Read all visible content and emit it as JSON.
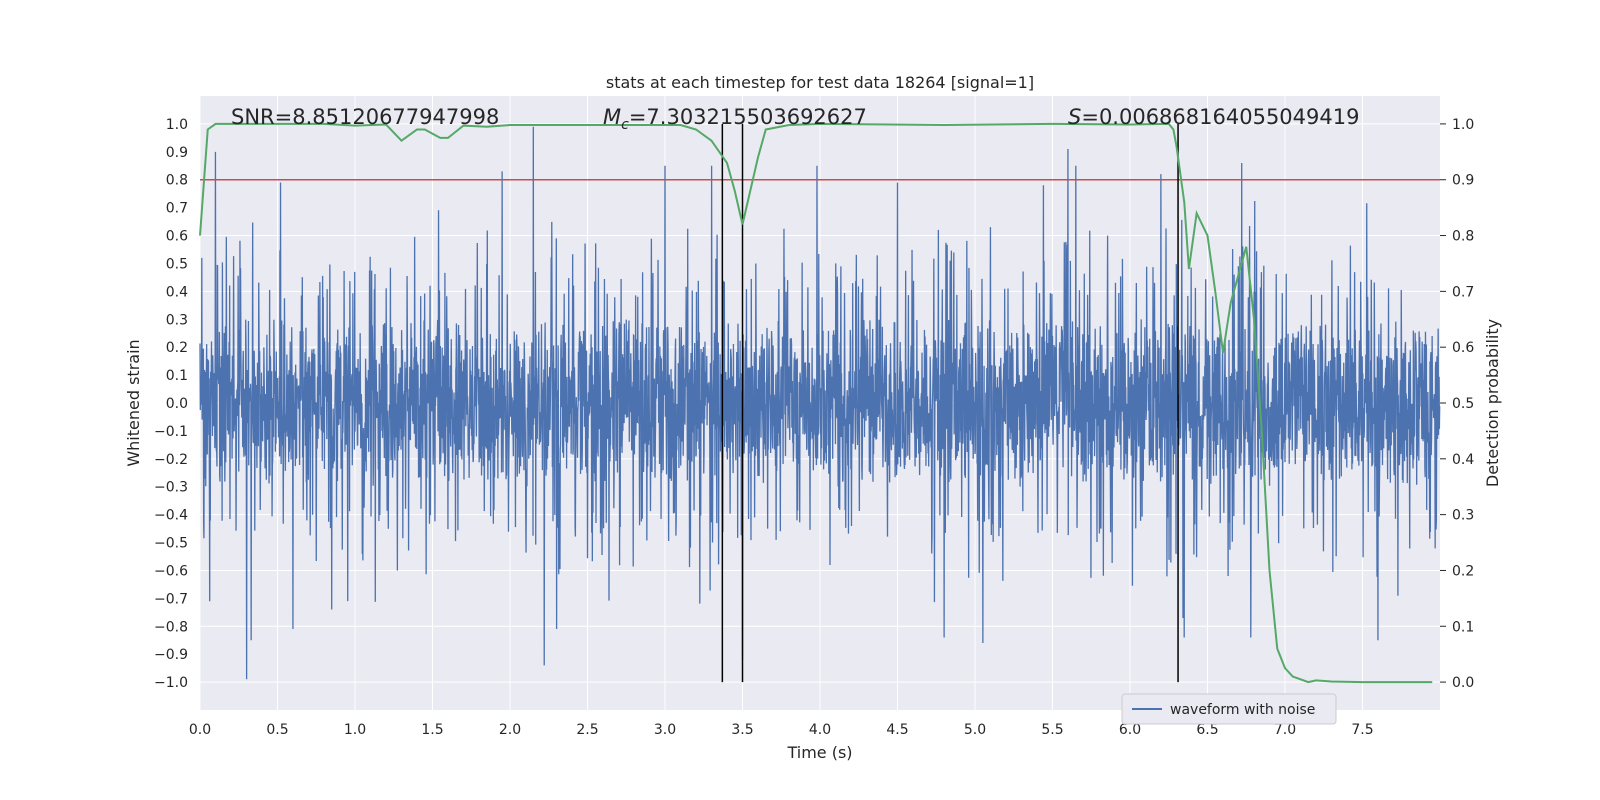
{
  "chart_data": {
    "type": "line",
    "title": "stats at each timestep for test data 18264 [signal=1]",
    "xlabel": "Time (s)",
    "ylabel": "Whitened strain",
    "y2label": "Detection probability",
    "xlim": [
      0,
      8
    ],
    "ylim": [
      -1.1,
      1.1
    ],
    "y2lim": [
      -0.05,
      1.05
    ],
    "x_ticks": [
      0.0,
      0.5,
      1.0,
      1.5,
      2.0,
      2.5,
      3.0,
      3.5,
      4.0,
      4.5,
      5.0,
      5.5,
      6.0,
      6.5,
      7.0,
      7.5
    ],
    "x_tick_labels": [
      "0.0",
      "0.5",
      "1.0",
      "1.5",
      "2.0",
      "2.5",
      "3.0",
      "3.5",
      "4.0",
      "4.5",
      "5.0",
      "5.5",
      "6.0",
      "6.5",
      "7.0",
      "7.5"
    ],
    "y_ticks": [
      1.0,
      0.9,
      0.8,
      0.7,
      0.6,
      0.5,
      0.4,
      0.3,
      0.2,
      0.1,
      0.0,
      -0.1,
      -0.2,
      -0.3,
      -0.4,
      -0.5,
      -0.6,
      -0.7,
      -0.8,
      -0.9,
      -1.0
    ],
    "y_tick_labels": [
      "1.0",
      "0.9",
      "0.8",
      "0.7",
      "0.6",
      "0.5",
      "0.4",
      "0.3",
      "0.2",
      "0.1",
      "0.0",
      "−0.1",
      "−0.2",
      "−0.3",
      "−0.4",
      "−0.5",
      "−0.6",
      "−0.7",
      "−0.8",
      "−0.9",
      "−1.0"
    ],
    "y2_ticks": [
      1.0,
      0.9,
      0.8,
      0.7,
      0.6,
      0.5,
      0.4,
      0.3,
      0.2,
      0.1,
      0.0
    ],
    "y2_tick_labels": [
      "1.0",
      "0.9",
      "0.8",
      "0.7",
      "0.6",
      "0.5",
      "0.4",
      "0.3",
      "0.2",
      "0.1",
      "0.0"
    ],
    "annotations": {
      "snr": {
        "text": "SNR=8.85120677947998",
        "x": 0.2
      },
      "mc": {
        "prefix": "M",
        "sub": "c",
        "suffix": "=7.303215503692627",
        "x": 2.6
      },
      "s": {
        "prefix": "S",
        "suffix": "=0.006868164055049419",
        "x": 5.6
      }
    },
    "threshold": {
      "axis": "y2",
      "value": 0.9,
      "color": "#c44e52"
    },
    "vertical_lines": [
      3.37,
      3.5,
      6.31
    ],
    "vline_y2_range": [
      0.0,
      1.0
    ],
    "waveform": {
      "name": "waveform with noise",
      "color": "#4c72b0",
      "n_points": 4096,
      "seed": 18264,
      "peaks": [
        {
          "x": 0.1,
          "y": 0.9
        },
        {
          "x": 0.3,
          "y": -0.99
        },
        {
          "x": 0.33,
          "y": -0.85
        },
        {
          "x": 0.52,
          "y": 0.79
        },
        {
          "x": 0.6,
          "y": -0.81
        },
        {
          "x": 0.85,
          "y": -0.74
        },
        {
          "x": 1.95,
          "y": 0.83
        },
        {
          "x": 2.15,
          "y": 0.99
        },
        {
          "x": 2.22,
          "y": -0.94
        },
        {
          "x": 2.3,
          "y": -0.81
        },
        {
          "x": 3.0,
          "y": 0.85
        },
        {
          "x": 3.3,
          "y": 0.85
        },
        {
          "x": 3.5,
          "y": -0.92
        },
        {
          "x": 3.98,
          "y": 0.85
        },
        {
          "x": 4.5,
          "y": 0.79
        },
        {
          "x": 4.8,
          "y": -0.84
        },
        {
          "x": 5.05,
          "y": -0.86
        },
        {
          "x": 5.6,
          "y": 0.91
        },
        {
          "x": 5.65,
          "y": 0.85
        },
        {
          "x": 6.2,
          "y": 0.82
        },
        {
          "x": 6.35,
          "y": -0.84
        },
        {
          "x": 6.72,
          "y": 0.86
        },
        {
          "x": 6.78,
          "y": -0.84
        },
        {
          "x": 7.6,
          "y": -0.85
        }
      ]
    },
    "probability": {
      "name": "Detection probability",
      "color": "#55a868",
      "x": [
        0.0,
        0.05,
        0.1,
        0.2,
        0.5,
        0.8,
        1.0,
        1.2,
        1.3,
        1.4,
        1.45,
        1.55,
        1.6,
        1.7,
        1.85,
        2.0,
        2.5,
        3.0,
        3.1,
        3.2,
        3.3,
        3.4,
        3.45,
        3.5,
        3.55,
        3.6,
        3.65,
        3.8,
        4.0,
        4.8,
        5.5,
        6.0,
        6.25,
        6.28,
        6.3,
        6.35,
        6.38,
        6.43,
        6.5,
        6.55,
        6.6,
        6.65,
        6.75,
        6.8,
        6.85,
        6.9,
        6.95,
        7.0,
        7.05,
        7.15,
        7.2,
        7.3,
        7.5,
        7.75,
        7.95
      ],
      "y": [
        0.8,
        0.99,
        1.0,
        1.0,
        1.0,
        1.0,
        0.997,
        0.999,
        0.97,
        0.99,
        0.99,
        0.975,
        0.975,
        0.997,
        0.995,
        0.998,
        0.998,
        0.998,
        0.998,
        0.99,
        0.97,
        0.93,
        0.88,
        0.82,
        0.88,
        0.94,
        0.99,
        0.998,
        1.0,
        0.998,
        1.0,
        0.999,
        1.0,
        0.99,
        0.96,
        0.86,
        0.74,
        0.84,
        0.8,
        0.7,
        0.59,
        0.68,
        0.78,
        0.65,
        0.45,
        0.2,
        0.06,
        0.025,
        0.01,
        0.0,
        0.003,
        0.001,
        0.0,
        0.0,
        0.0
      ]
    },
    "legend": {
      "label": "waveform with noise",
      "location": "lower-right"
    }
  }
}
